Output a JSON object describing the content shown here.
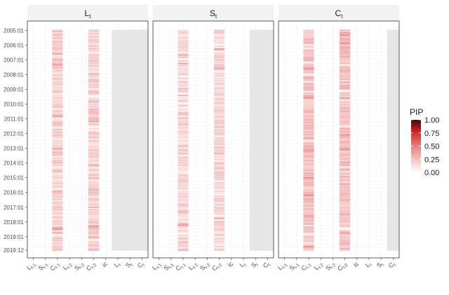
{
  "chart_data": {
    "type": "heatmap",
    "title": "",
    "panels": [
      {
        "title": "L",
        "subscript": "t",
        "active_cols": [
          2,
          5
        ],
        "gray_cols": [
          7,
          8,
          9
        ],
        "base_intensity": 0.18
      },
      {
        "title": "S",
        "subscript": "t",
        "active_cols": [
          2,
          5
        ],
        "gray_cols": [
          8,
          9
        ],
        "base_intensity": 0.16
      },
      {
        "title": "C",
        "subscript": "t",
        "active_cols": [
          2,
          5
        ],
        "gray_cols": [
          9
        ],
        "base_intensity": 0.24
      }
    ],
    "columns": [
      {
        "main": "L",
        "sub": "t-1"
      },
      {
        "main": "S",
        "sub": "t-1"
      },
      {
        "main": "C",
        "sub": "t-1"
      },
      {
        "main": "L",
        "sub": "t-2"
      },
      {
        "main": "S",
        "sub": "t-2"
      },
      {
        "main": "C",
        "sub": "t-2"
      },
      {
        "main": "ic",
        "sub": ""
      },
      {
        "main": "L",
        "sub": "t"
      },
      {
        "main": "S",
        "sub": "t"
      },
      {
        "main": "C",
        "sub": "t"
      }
    ],
    "y_ticks": [
      "2005:01",
      "2006:01",
      "2007:01",
      "2008:01",
      "2009:01",
      "2010:01",
      "2011:01",
      "2012:01",
      "2013:01",
      "2014:01",
      "2015:01",
      "2016:01",
      "2017:01",
      "2018:01",
      "2019:01",
      "2019:12"
    ],
    "n_rows": 180,
    "legend": {
      "title": "PIP",
      "ticks": [
        "1.00",
        "0.75",
        "0.50",
        "0.25",
        "0.00"
      ],
      "low_color": "#ffffff",
      "high_color": "#3d0a0a",
      "mid_color": "#d73027"
    },
    "gray_color": "#e6e6e6"
  }
}
